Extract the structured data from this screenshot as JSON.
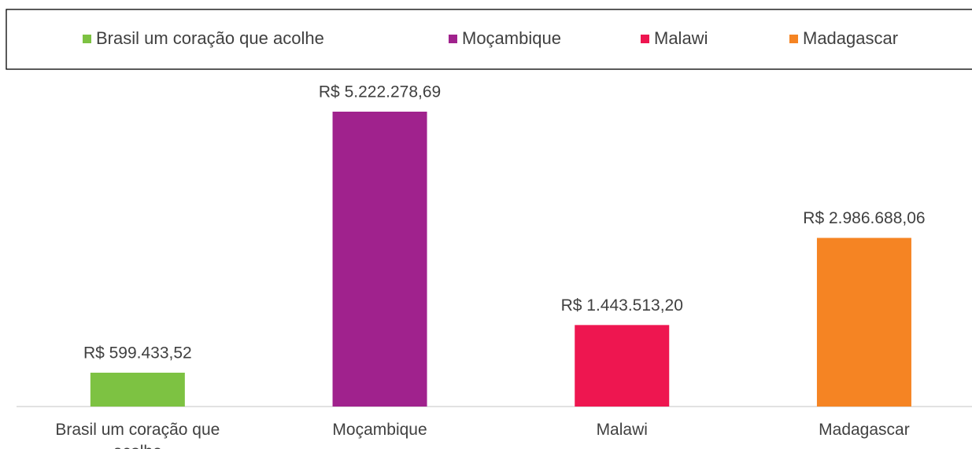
{
  "chart_data": {
    "type": "bar",
    "categories": [
      "Brasil um coração que acolhe",
      "Moçambique",
      "Malawi",
      "Madagascar"
    ],
    "values": [
      599433.52,
      5222278.69,
      1443513.2,
      2986688.06
    ],
    "value_labels": [
      "R$ 599.433,52",
      "R$ 5.222.278,69",
      "R$ 1.443.513,20",
      "R$ 2.986.688,06"
    ],
    "colors": [
      "#7dc242",
      "#a0228d",
      "#ee1650",
      "#f58423"
    ],
    "legend": "top"
  }
}
